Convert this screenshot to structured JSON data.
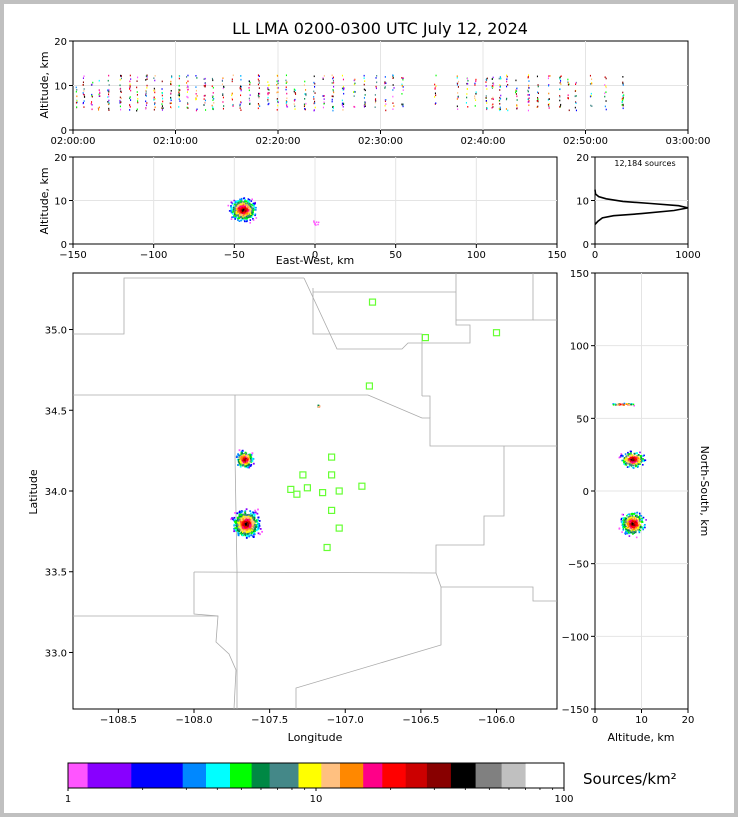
{
  "chart_data": {
    "type": "scatter",
    "title": "LL LMA 0200-0300 UTC July 12, 2024",
    "panels": {
      "time_height": {
        "ylabel": "Altitude, km",
        "ylim": [
          0,
          20
        ],
        "yticks": [
          "0",
          "10",
          "20"
        ],
        "xticks": [
          "02:00:00",
          "02:10:00",
          "02:20:00",
          "02:30:00",
          "02:40:00",
          "02:50:00",
          "03:00:00"
        ],
        "flash_minutes": [
          0.3,
          1.0,
          1.8,
          2.5,
          3.4,
          4.6,
          5.5,
          6.2,
          7.1,
          7.9,
          8.7,
          9.5,
          10.3,
          11.1,
          12.0,
          12.8,
          13.6,
          14.6,
          15.5,
          16.3,
          17.2,
          18.1,
          19.0,
          19.9,
          20.8,
          21.6,
          22.6,
          23.5,
          24.4,
          25.3,
          26.3,
          27.4,
          28.4,
          29.5,
          30.4,
          31.2,
          32.1,
          35.3,
          37.5,
          38.4,
          39.2,
          40.3,
          40.9,
          41.6,
          42.3,
          43.2,
          44.4,
          45.3,
          46.4,
          47.5,
          48.3,
          49.0,
          50.5,
          51.9,
          53.6
        ],
        "altitude_range_km": [
          4.5,
          12.5
        ]
      },
      "ew_height": {
        "ylabel": "Altitude, km",
        "xlabel": "East-West, km",
        "xlim": [
          -150,
          150
        ],
        "ylim": [
          0,
          20
        ],
        "xticks": [
          "-150",
          "-100",
          "-50",
          "0",
          "50",
          "100",
          "150"
        ],
        "yticks": [
          "0",
          "10",
          "20"
        ],
        "cluster_center": [
          -45,
          8
        ]
      },
      "histogram": {
        "label": "12,184 sources",
        "xlim": [
          0,
          1000
        ],
        "ylim": [
          0,
          20
        ],
        "xticks": [
          "0",
          "1000"
        ],
        "yticks": [
          "0",
          "10",
          "20"
        ],
        "profile": [
          [
            0,
            4.5
          ],
          [
            30,
            5.2
          ],
          [
            80,
            6.0
          ],
          [
            200,
            6.5
          ],
          [
            500,
            7.0
          ],
          [
            850,
            7.7
          ],
          [
            1000,
            8.3
          ],
          [
            900,
            8.8
          ],
          [
            600,
            9.3
          ],
          [
            300,
            9.8
          ],
          [
            120,
            10.4
          ],
          [
            40,
            10.9
          ],
          [
            5,
            11.5
          ],
          [
            0,
            12.5
          ]
        ]
      },
      "plan_view": {
        "xlabel": "Longitude",
        "ylabel": "Latitude",
        "xlim": [
          -108.8,
          -105.6
        ],
        "ylim": [
          32.65,
          35.35
        ],
        "xticks": [
          "−108.5",
          "−108.0",
          "−107.5",
          "−107.0",
          "−106.5",
          "−106.0"
        ],
        "xtick_values": [
          -108.5,
          -108.0,
          -107.5,
          -107.0,
          -106.5,
          -106.0
        ],
        "yticks": [
          "33.0",
          "33.5",
          "34.0",
          "34.5",
          "35.0"
        ],
        "ytick_values": [
          33.0,
          33.5,
          34.0,
          34.5,
          35.0
        ],
        "stations": [
          [
            -106.82,
            35.17
          ],
          [
            -106.47,
            34.95
          ],
          [
            -106.0,
            34.98
          ],
          [
            -106.84,
            34.65
          ],
          [
            -107.09,
            34.21
          ],
          [
            -107.28,
            34.1
          ],
          [
            -107.09,
            34.1
          ],
          [
            -107.36,
            34.01
          ],
          [
            -107.25,
            34.02
          ],
          [
            -107.32,
            33.98
          ],
          [
            -107.15,
            33.99
          ],
          [
            -107.04,
            34.0
          ],
          [
            -106.89,
            34.03
          ],
          [
            -107.09,
            33.88
          ],
          [
            -107.04,
            33.77
          ],
          [
            -107.12,
            33.65
          ]
        ],
        "clusters": [
          {
            "lon": -107.67,
            "lat": 34.2,
            "radius_deg": 0.07
          },
          {
            "lon": -107.66,
            "lat": 33.8,
            "radius_deg": 0.11
          },
          {
            "lon": -107.18,
            "lat": 34.53,
            "radius_deg": 0.01
          }
        ]
      },
      "ns_height": {
        "ylabel": "North-South, km",
        "xlabel": "Altitude, km",
        "xlim": [
          0,
          20
        ],
        "ylim": [
          -150,
          150
        ],
        "xticks": [
          "0",
          "10",
          "20"
        ],
        "yticks": [
          "−150",
          "−100",
          "−50",
          "0",
          "50",
          "100",
          "150"
        ],
        "ytick_values": [
          -150,
          -100,
          -50,
          0,
          50,
          100,
          150
        ],
        "clusters": [
          {
            "alt": 8,
            "ns": 22,
            "spread": 7
          },
          {
            "alt": 8,
            "ns": -22,
            "spread": 10
          },
          {
            "alt": 6,
            "ns": 60,
            "spread": 1
          }
        ]
      }
    },
    "colorbar": {
      "label": "Sources/km²",
      "ticks": [
        "1",
        "10",
        "100"
      ],
      "colors": [
        "#ff55ff",
        "#8800ff",
        "#0000ff",
        "#0088ff",
        "#00ffff",
        "#00ff00",
        "#008844",
        "#448888",
        "#ffff00",
        "#ffc080",
        "#ff8800",
        "#ff0088",
        "#ff0000",
        "#cc0000",
        "#880000",
        "#000000",
        "#808080",
        "#c0c0c0",
        "#ffffff"
      ],
      "scale": "log",
      "range": [
        1,
        100
      ]
    }
  }
}
